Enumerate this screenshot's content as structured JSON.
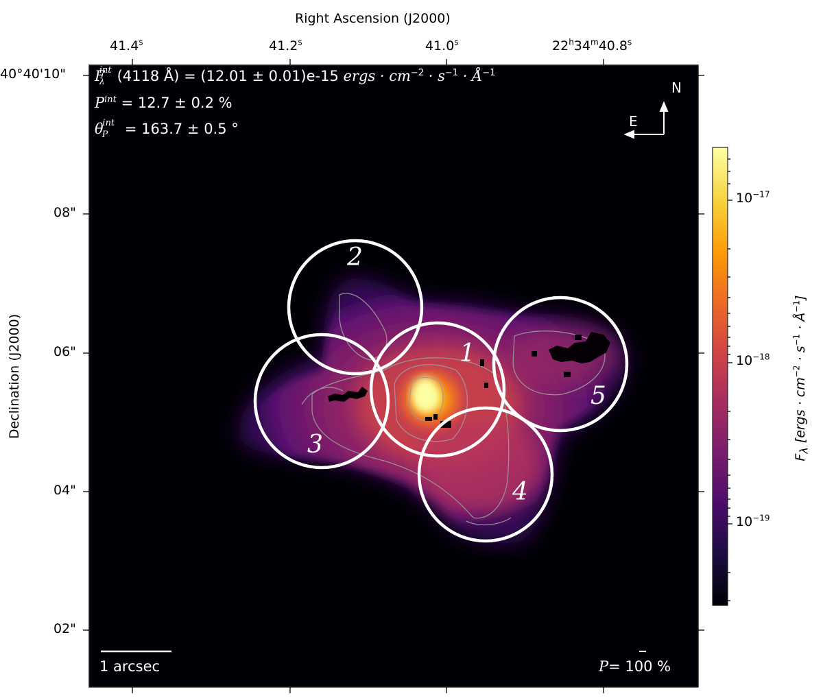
{
  "figure": {
    "top_axis_title": "Right Ascension (J2000)",
    "left_axis_title": "Declination (J2000)",
    "ra_ticks": [
      {
        "base": "41.4",
        "sup": "s"
      },
      {
        "base": "41.2",
        "sup": "s"
      },
      {
        "base": "41.0",
        "sup": "s"
      },
      {
        "base": "22",
        "sup": "h",
        "base2": "34",
        "sup2": "m",
        "base3": "40.8",
        "sup3": "s"
      }
    ],
    "dec_ticks": [
      "40°40'10\"",
      "08\"",
      "06\"",
      "04\"",
      "02\""
    ],
    "overlay": {
      "line1_var": "F",
      "line1_sub": "λ",
      "line1_sup": "int",
      "line1_text": "(4118 Å) = (12.01 ± 0.01)e-15",
      "line1_units": "ergs · cm",
      "line1_units_exp1": "−2",
      "line1_units_mid": " · s",
      "line1_units_exp2": "−1",
      "line1_units_end": " · Å",
      "line1_units_exp3": "−1",
      "line2_var": "P",
      "line2_sup": "int",
      "line2_text": "= 12.7 ± 0.2 %",
      "line3_var": "θ",
      "line3_sub": "P",
      "line3_sup": "int",
      "line3_text": "= 163.7 ± 0.5 °"
    },
    "compass": {
      "north": "N",
      "east": "E"
    },
    "scalebar_label": "1 arcsec",
    "polarization_label": "P= 100 %",
    "regions": [
      "1",
      "2",
      "3",
      "4",
      "5"
    ],
    "colorbar": {
      "label": "F",
      "label_sub": "λ",
      "label_units": "[ergs · cm",
      "label_exp1": "−2",
      "label_mid": " · s",
      "label_exp2": "−1",
      "label_mid2": " · Å",
      "label_exp3": "−1",
      "label_end": "]",
      "ticks": [
        {
          "base": "10",
          "exp": "−17"
        },
        {
          "base": "10",
          "exp": "−18"
        },
        {
          "base": "10",
          "exp": "−19"
        }
      ],
      "colors": [
        "#000004",
        "#1b0c41",
        "#4a0c6b",
        "#781c6d",
        "#a52c60",
        "#cf4446",
        "#ed6925",
        "#fb9b06",
        "#f7d13d",
        "#fcffa4"
      ]
    }
  }
}
